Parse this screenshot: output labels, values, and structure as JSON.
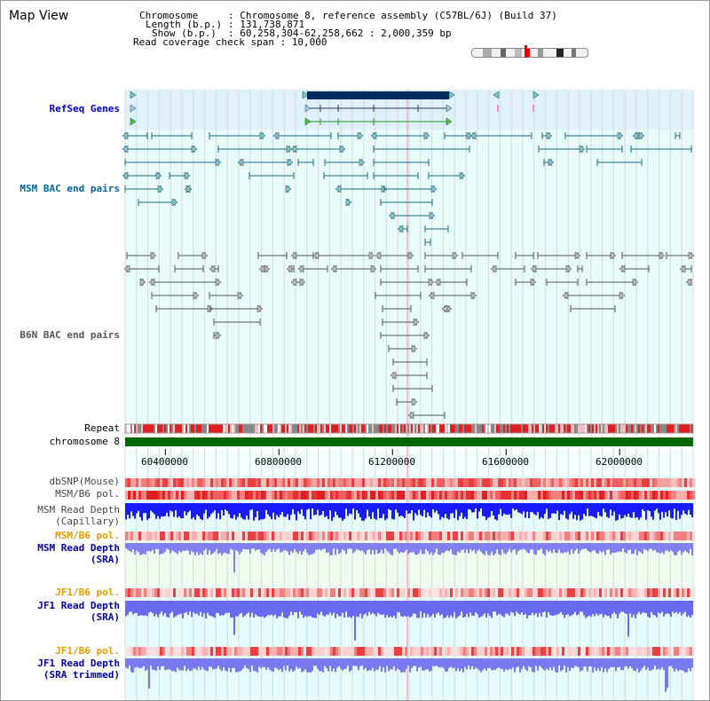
{
  "page": {
    "title": "Map View"
  },
  "info": {
    "chromosome_key": "Chromosome",
    "chromosome_val": ": Chromosome 8, reference assembly (C57BL/6J) (Build 37)",
    "length_key": "Length (b.p.)",
    "length_val": ": 131,738,871",
    "show_key": "Show (b.p.)",
    "show_val": ": 60,258,304-62,258,662 : 2,000,359 bp",
    "coverage": "Read coverage check span : 10,000"
  },
  "tracks": {
    "refseq": "RefSeq Genes",
    "msm_bac": "MSM BAC end pairs",
    "b6n_bac": "B6N BAC end pairs",
    "repeat": "Repeat",
    "chromosome": "chromosome 8",
    "dbsnp": "dbSNP(Mouse)",
    "msm_b6_pol1": "MSM/B6 pol.",
    "msm_depth_cap1": "MSM Read Depth",
    "msm_depth_cap2": "(Capillary)",
    "msm_b6_pol2": "MSM/B6 pol.",
    "msm_depth_sra1": "MSM Read Depth",
    "msm_depth_sra2": "(SRA)",
    "jf1_b6_pol1": "JF1/B6 pol.",
    "jf1_depth_sra1": "JF1 Read Depth",
    "jf1_depth_sra2": "(SRA)",
    "jf1_b6_pol2": "JF1/B6 pol.",
    "jf1_depth_trim1": "JF1 Read Depth",
    "jf1_depth_trim2": "(SRA trimmed)"
  },
  "axis": {
    "ticks": [
      {
        "label": "60400000",
        "value": 60400000
      },
      {
        "label": "60800000",
        "value": 60800000
      },
      {
        "label": "61200000",
        "value": 61200000
      },
      {
        "label": "61600000",
        "value": 61600000
      },
      {
        "label": "62000000",
        "value": 62000000
      }
    ],
    "range": [
      60258304,
      62258662
    ]
  },
  "colors": {
    "refseq_label": "#0000cc",
    "msm_label": "#006699",
    "b6n_label": "#555555",
    "orange_label": "#e69a00",
    "blue_label": "#0000aa",
    "chromosome_bar": "#006600",
    "refseq_bg": "#dff1fb",
    "track_bg": "#e6fbfb"
  }
}
